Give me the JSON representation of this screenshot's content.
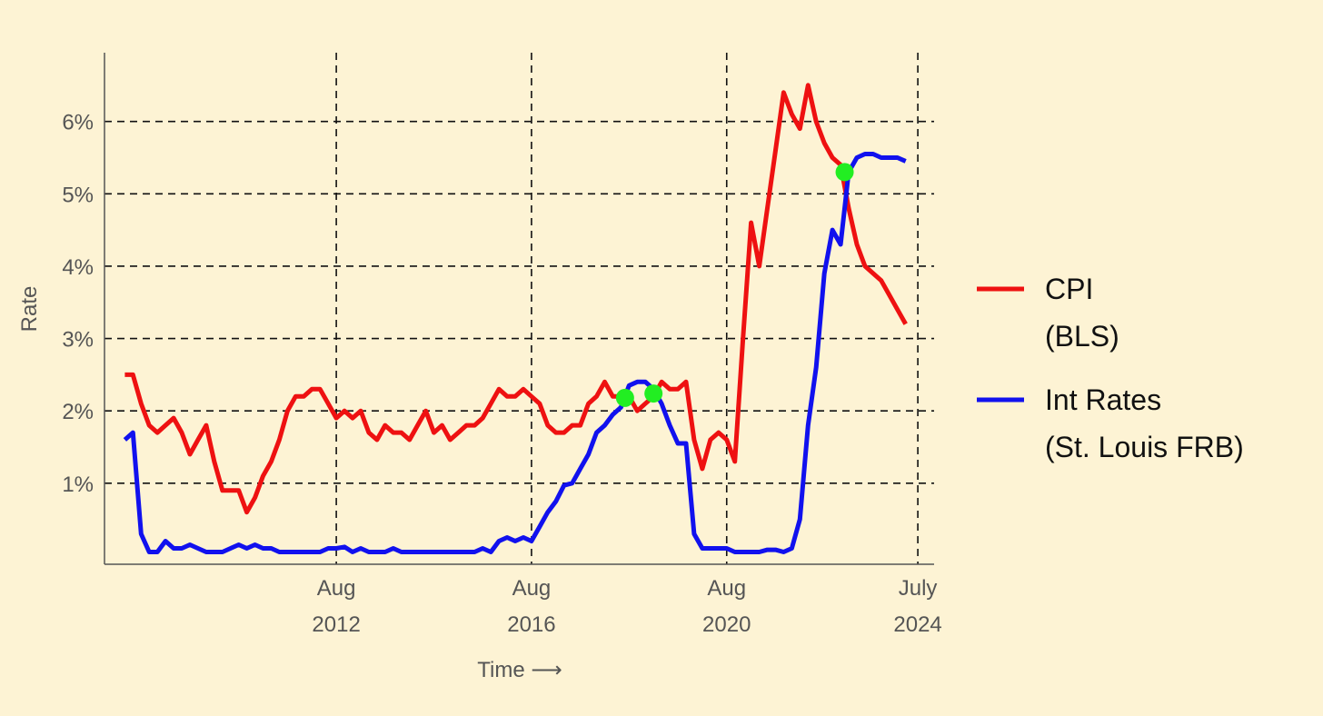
{
  "chart_data": {
    "type": "line",
    "y_label": "Rate",
    "x_label": "Time ⟶",
    "x": [
      "2008-04",
      "2008-06",
      "2008-08",
      "2008-10",
      "2008-12",
      "2009-02",
      "2009-04",
      "2009-06",
      "2009-08",
      "2009-10",
      "2009-12",
      "2010-02",
      "2010-04",
      "2010-06",
      "2010-08",
      "2010-10",
      "2010-12",
      "2011-02",
      "2011-04",
      "2011-06",
      "2011-08",
      "2011-10",
      "2011-12",
      "2012-02",
      "2012-04",
      "2012-06",
      "2012-08",
      "2012-10",
      "2012-12",
      "2013-02",
      "2013-04",
      "2013-06",
      "2013-08",
      "2013-10",
      "2013-12",
      "2014-02",
      "2014-04",
      "2014-06",
      "2014-08",
      "2014-10",
      "2014-12",
      "2015-02",
      "2015-04",
      "2015-06",
      "2015-08",
      "2015-10",
      "2015-12",
      "2016-02",
      "2016-04",
      "2016-06",
      "2016-08",
      "2016-10",
      "2016-12",
      "2017-02",
      "2017-04",
      "2017-06",
      "2017-08",
      "2017-10",
      "2017-12",
      "2018-02",
      "2018-04",
      "2018-06",
      "2018-08",
      "2018-10",
      "2018-12",
      "2019-02",
      "2019-04",
      "2019-06",
      "2019-08",
      "2019-10",
      "2019-12",
      "2020-02",
      "2020-04",
      "2020-06",
      "2020-08",
      "2020-10",
      "2020-12",
      "2021-02",
      "2021-04",
      "2021-06",
      "2021-08",
      "2021-10",
      "2021-12",
      "2022-02",
      "2022-04",
      "2022-06",
      "2022-08",
      "2022-10",
      "2022-12",
      "2023-02",
      "2023-04",
      "2023-06",
      "2023-08",
      "2023-10",
      "2023-12",
      "2024-02",
      "2024-04"
    ],
    "series": [
      {
        "name": "CPI\n(BLS)",
        "color": "#ee1111",
        "values": [
          2.5,
          2.5,
          2.1,
          1.8,
          1.7,
          1.8,
          1.9,
          1.7,
          1.4,
          1.6,
          1.8,
          1.3,
          0.9,
          0.9,
          0.9,
          0.6,
          0.8,
          1.1,
          1.3,
          1.6,
          2.0,
          2.2,
          2.2,
          2.3,
          2.3,
          2.1,
          1.9,
          2.0,
          1.9,
          2.0,
          1.7,
          1.6,
          1.8,
          1.7,
          1.7,
          1.6,
          1.8,
          2.0,
          1.7,
          1.8,
          1.6,
          1.7,
          1.8,
          1.8,
          1.9,
          2.1,
          2.3,
          2.2,
          2.2,
          2.3,
          2.2,
          2.1,
          1.8,
          1.7,
          1.7,
          1.8,
          1.8,
          2.1,
          2.2,
          2.4,
          2.2,
          2.2,
          2.2,
          2.0,
          2.1,
          2.2,
          2.4,
          2.3,
          2.3,
          2.4,
          1.6,
          1.2,
          1.6,
          1.7,
          1.6,
          1.3,
          3.0,
          4.6,
          4.0,
          4.8,
          5.6,
          6.4,
          6.1,
          5.9,
          6.5,
          6.0,
          5.7,
          5.5,
          5.4,
          4.8,
          4.3,
          4.0,
          3.9,
          3.8,
          3.6,
          3.4,
          3.2
        ]
      },
      {
        "name": "Int Rates\n(St. Louis FRB)",
        "color": "#1111ee",
        "values": [
          1.6,
          1.7,
          0.3,
          0.05,
          0.05,
          0.2,
          0.1,
          0.1,
          0.15,
          0.1,
          0.05,
          0.05,
          0.05,
          0.1,
          0.15,
          0.1,
          0.15,
          0.1,
          0.1,
          0.05,
          0.05,
          0.05,
          0.05,
          0.05,
          0.05,
          0.1,
          0.1,
          0.12,
          0.05,
          0.1,
          0.05,
          0.05,
          0.05,
          0.1,
          0.05,
          0.05,
          0.05,
          0.05,
          0.05,
          0.05,
          0.05,
          0.05,
          0.05,
          0.05,
          0.1,
          0.05,
          0.2,
          0.25,
          0.2,
          0.25,
          0.2,
          0.4,
          0.6,
          0.75,
          0.97,
          1.0,
          1.2,
          1.4,
          1.7,
          1.8,
          1.95,
          2.05,
          2.35,
          2.4,
          2.4,
          2.3,
          2.1,
          1.8,
          1.55,
          1.55,
          0.3,
          0.1,
          0.1,
          0.1,
          0.1,
          0.05,
          0.05,
          0.05,
          0.05,
          0.08,
          0.08,
          0.05,
          0.1,
          0.5,
          1.8,
          2.6,
          3.9,
          4.5,
          4.3,
          5.3,
          5.5,
          5.55,
          5.55,
          5.5,
          5.5,
          5.5,
          5.45
        ]
      }
    ],
    "points": {
      "color": "#22ee22",
      "x": [
        "2018-07",
        "2019-02",
        "2023-01"
      ],
      "values": [
        2.18,
        2.24,
        5.3
      ]
    },
    "xlim": [
      "2007-11",
      "2024-11"
    ],
    "xticks": [
      {
        "value": "2012-08",
        "label": "Aug\n2012"
      },
      {
        "value": "2016-08",
        "label": "Aug\n2016"
      },
      {
        "value": "2020-08",
        "label": "Aug\n2020"
      },
      {
        "value": "2024-07",
        "label": "July\n2024"
      }
    ],
    "ylim": [
      -0.12,
      6.95
    ],
    "yticks": [
      {
        "value": 1,
        "label": "1%"
      },
      {
        "value": 2,
        "label": "2%"
      },
      {
        "value": 3,
        "label": "3%"
      },
      {
        "value": 4,
        "label": "4%"
      },
      {
        "value": 5,
        "label": "5%"
      },
      {
        "value": 6,
        "label": "6%"
      }
    ],
    "grid": true,
    "legend": "right"
  }
}
